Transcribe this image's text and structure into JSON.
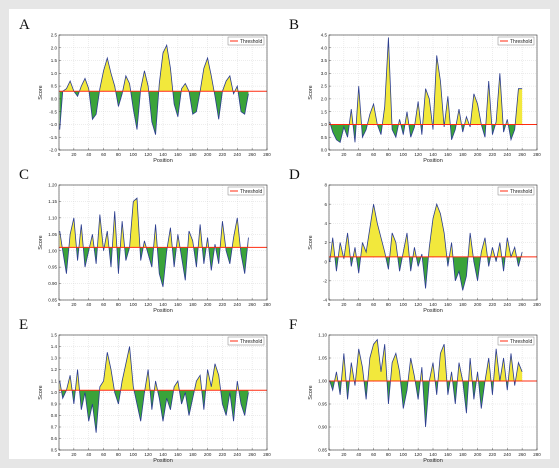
{
  "figure": {
    "panel_letters": [
      "A",
      "B",
      "C",
      "D",
      "E",
      "F"
    ]
  },
  "colors": {
    "above_fill": "#f2e83c",
    "below_fill": "#3aa33a",
    "score_line": "#2b3d8f",
    "threshold_line": "#ff2b10",
    "grid": "#cfcfcf"
  },
  "chart_data": [
    {
      "panel": "A",
      "type": "area",
      "xlabel": "Position",
      "ylabel": "Score",
      "legend": "Threshold",
      "legend_placement": "top-right",
      "grid": true,
      "xlim": [
        0,
        280
      ],
      "ylim": [
        -2.0,
        2.5
      ],
      "xticks": [
        "0",
        "20",
        "40",
        "60",
        "80",
        "100",
        "120",
        "140",
        "160",
        "180",
        "200",
        "220",
        "240",
        "260",
        "280"
      ],
      "yticks": [
        "-2.0",
        "-1.5",
        "-1.0",
        "-0.5",
        "0.0",
        "0.5",
        "1.0",
        "1.5",
        "2.0",
        "2.5"
      ],
      "threshold": 0.3,
      "x": [
        1,
        5,
        10,
        15,
        20,
        25,
        30,
        35,
        40,
        45,
        50,
        55,
        60,
        65,
        70,
        75,
        80,
        85,
        90,
        95,
        100,
        105,
        110,
        115,
        120,
        125,
        130,
        135,
        140,
        145,
        150,
        155,
        160,
        165,
        170,
        175,
        180,
        185,
        190,
        195,
        200,
        205,
        210,
        215,
        220,
        225,
        230,
        235,
        240,
        245,
        250,
        255
      ],
      "values": [
        -1.2,
        0.3,
        0.4,
        0.7,
        0.3,
        0.1,
        0.5,
        0.8,
        0.4,
        -0.8,
        -0.6,
        0.4,
        1.1,
        1.6,
        1.0,
        0.5,
        -0.3,
        0.2,
        0.9,
        0.6,
        -0.4,
        -1.2,
        0.4,
        1.1,
        0.5,
        -0.9,
        -1.4,
        0.6,
        1.8,
        2.1,
        1.2,
        -0.2,
        -0.7,
        0.4,
        0.6,
        0.3,
        -0.6,
        -0.5,
        0.3,
        1.2,
        1.6,
        0.9,
        0.1,
        -0.8,
        0.3,
        0.7,
        0.9,
        0.2,
        0.5,
        -0.5,
        -0.6,
        0.2
      ]
    },
    {
      "panel": "B",
      "type": "area",
      "xlabel": "Position",
      "ylabel": "Score",
      "legend": "Threshold",
      "legend_placement": "top-right",
      "grid": true,
      "xlim": [
        0,
        280
      ],
      "ylim": [
        0.0,
        4.5
      ],
      "xticks": [
        "0",
        "20",
        "40",
        "60",
        "80",
        "100",
        "120",
        "140",
        "160",
        "180",
        "200",
        "220",
        "240",
        "260",
        "280"
      ],
      "yticks": [
        "0.0",
        "0.5",
        "1.0",
        "1.5",
        "2.0",
        "2.5",
        "3.0",
        "3.5",
        "4.0",
        "4.5"
      ],
      "threshold": 1.0,
      "x": [
        1,
        5,
        10,
        15,
        20,
        25,
        30,
        35,
        40,
        45,
        50,
        55,
        60,
        65,
        70,
        75,
        80,
        85,
        90,
        95,
        100,
        105,
        110,
        115,
        120,
        125,
        130,
        135,
        140,
        145,
        150,
        155,
        160,
        165,
        170,
        175,
        180,
        185,
        190,
        195,
        200,
        205,
        210,
        215,
        220,
        225,
        230,
        235,
        240,
        245,
        250,
        255,
        260
      ],
      "values": [
        1.1,
        0.7,
        0.4,
        0.3,
        0.9,
        0.5,
        1.6,
        0.3,
        2.5,
        0.5,
        0.8,
        1.4,
        1.8,
        1.0,
        0.6,
        1.7,
        4.4,
        0.8,
        0.5,
        1.2,
        0.6,
        1.5,
        0.5,
        0.9,
        1.9,
        0.6,
        2.4,
        2.0,
        0.8,
        3.7,
        2.7,
        0.9,
        2.1,
        0.4,
        0.8,
        1.6,
        0.7,
        1.3,
        0.9,
        2.2,
        1.8,
        1.0,
        0.5,
        2.7,
        0.6,
        1.1,
        3.0,
        0.7,
        1.2,
        0.4,
        0.8,
        2.4,
        2.4
      ]
    },
    {
      "panel": "C",
      "type": "area",
      "xlabel": "Position",
      "ylabel": "Score",
      "legend": "Threshold",
      "legend_placement": "top-right",
      "grid": true,
      "xlim": [
        0,
        280
      ],
      "ylim": [
        0.85,
        1.2
      ],
      "xticks": [
        "0",
        "20",
        "40",
        "60",
        "80",
        "100",
        "120",
        "140",
        "160",
        "180",
        "200",
        "220",
        "240",
        "260",
        "280"
      ],
      "yticks": [
        "0.85",
        "0.90",
        "0.95",
        "1.00",
        "1.05",
        "1.10",
        "1.15",
        "1.20"
      ],
      "threshold": 1.01,
      "x": [
        1,
        5,
        10,
        15,
        20,
        25,
        30,
        35,
        40,
        45,
        50,
        55,
        60,
        65,
        70,
        75,
        80,
        85,
        90,
        95,
        100,
        105,
        110,
        115,
        120,
        125,
        130,
        135,
        140,
        145,
        150,
        155,
        160,
        165,
        170,
        175,
        180,
        185,
        190,
        195,
        200,
        205,
        210,
        215,
        220,
        225,
        230,
        235,
        240,
        245,
        250,
        255
      ],
      "values": [
        1.06,
        1.0,
        0.93,
        1.05,
        1.1,
        0.97,
        1.08,
        0.95,
        1.0,
        1.05,
        0.96,
        1.11,
        1.0,
        1.06,
        0.95,
        1.12,
        0.93,
        1.09,
        0.97,
        1.01,
        1.15,
        1.16,
        0.97,
        1.03,
        0.99,
        0.95,
        1.08,
        0.93,
        0.89,
        1.0,
        1.07,
        0.95,
        1.05,
        0.98,
        0.91,
        1.06,
        1.03,
        0.95,
        1.08,
        0.96,
        1.04,
        0.94,
        1.02,
        0.96,
        1.09,
        1.0,
        0.96,
        1.04,
        1.1,
        0.99,
        0.93,
        1.04
      ]
    },
    {
      "panel": "D",
      "type": "area",
      "xlabel": "Position",
      "ylabel": "Score",
      "legend": "Threshold",
      "legend_placement": "top-right",
      "grid": true,
      "xlim": [
        0,
        280
      ],
      "ylim": [
        -4,
        8
      ],
      "xticks": [
        "0",
        "20",
        "40",
        "60",
        "80",
        "100",
        "120",
        "140",
        "160",
        "180",
        "200",
        "220",
        "240",
        "260",
        "280"
      ],
      "yticks": [
        "-4",
        "-2",
        "0",
        "2",
        "4",
        "6",
        "8"
      ],
      "threshold": 0.5,
      "x": [
        1,
        5,
        10,
        15,
        20,
        25,
        30,
        35,
        40,
        45,
        50,
        55,
        60,
        65,
        70,
        75,
        80,
        85,
        90,
        95,
        100,
        105,
        110,
        115,
        120,
        125,
        130,
        135,
        140,
        145,
        150,
        155,
        160,
        165,
        170,
        175,
        180,
        185,
        190,
        195,
        200,
        205,
        210,
        215,
        220,
        225,
        230,
        235,
        240,
        245,
        250,
        255,
        260
      ],
      "values": [
        0.0,
        2.5,
        -1.0,
        2.0,
        0.3,
        3.0,
        -0.5,
        1.5,
        -1.2,
        2.0,
        1.0,
        3.5,
        6.0,
        4.0,
        2.5,
        1.0,
        -0.8,
        3.0,
        2.0,
        -1.0,
        1.0,
        3.0,
        -1.0,
        1.5,
        -0.5,
        0.8,
        -2.8,
        1.5,
        4.5,
        6.0,
        5.0,
        3.0,
        -0.5,
        2.0,
        -2.0,
        -1.0,
        -3.0,
        -1.5,
        3.0,
        0.0,
        -2.0,
        1.0,
        2.5,
        -0.5,
        1.5,
        0.0,
        2.0,
        -1.0,
        2.5,
        0.5,
        1.5,
        -0.5,
        1.0
      ]
    },
    {
      "panel": "E",
      "type": "area",
      "xlabel": "Position",
      "ylabel": "Score",
      "legend": "Threshold",
      "legend_placement": "top-right",
      "grid": true,
      "xlim": [
        0,
        280
      ],
      "ylim": [
        0.5,
        1.5
      ],
      "xticks": [
        "0",
        "20",
        "40",
        "60",
        "80",
        "100",
        "120",
        "140",
        "160",
        "180",
        "200",
        "220",
        "240",
        "260",
        "280"
      ],
      "yticks": [
        "0.5",
        "0.6",
        "0.7",
        "0.8",
        "0.9",
        "1.0",
        "1.1",
        "1.2",
        "1.3",
        "1.4",
        "1.5"
      ],
      "threshold": 1.02,
      "x": [
        1,
        5,
        10,
        15,
        20,
        25,
        30,
        35,
        40,
        45,
        50,
        55,
        60,
        65,
        70,
        75,
        80,
        85,
        90,
        95,
        100,
        105,
        110,
        115,
        120,
        125,
        130,
        135,
        140,
        145,
        150,
        155,
        160,
        165,
        170,
        175,
        180,
        185,
        190,
        195,
        200,
        205,
        210,
        215,
        220,
        225,
        230,
        235,
        240,
        245,
        250,
        255
      ],
      "values": [
        1.1,
        0.95,
        1.02,
        1.15,
        0.9,
        1.2,
        0.85,
        1.0,
        0.75,
        0.9,
        0.65,
        1.05,
        1.1,
        1.35,
        1.2,
        1.0,
        0.9,
        1.1,
        1.25,
        1.4,
        1.05,
        0.9,
        0.75,
        1.0,
        1.2,
        0.85,
        1.1,
        0.95,
        0.75,
        0.95,
        0.85,
        1.05,
        1.1,
        0.9,
        1.0,
        0.8,
        0.95,
        1.1,
        1.15,
        0.85,
        1.2,
        1.05,
        1.25,
        1.15,
        0.9,
        0.8,
        1.0,
        0.75,
        1.1,
        0.9,
        0.8,
        1.0
      ]
    },
    {
      "panel": "F",
      "type": "area",
      "xlabel": "Position",
      "ylabel": "Score",
      "legend": "Threshold",
      "legend_placement": "top-right",
      "grid": true,
      "xlim": [
        0,
        280
      ],
      "ylim": [
        0.85,
        1.1
      ],
      "xticks": [
        "0",
        "20",
        "40",
        "60",
        "80",
        "100",
        "120",
        "140",
        "160",
        "180",
        "200",
        "220",
        "240",
        "260",
        "280"
      ],
      "yticks": [
        "0.85",
        "0.90",
        "0.95",
        "1.00",
        "1.05",
        "1.10"
      ],
      "threshold": 1.0,
      "x": [
        1,
        5,
        10,
        15,
        20,
        25,
        30,
        35,
        40,
        45,
        50,
        55,
        60,
        65,
        70,
        75,
        80,
        85,
        90,
        95,
        100,
        105,
        110,
        115,
        120,
        125,
        130,
        135,
        140,
        145,
        150,
        155,
        160,
        165,
        170,
        175,
        180,
        185,
        190,
        195,
        200,
        205,
        210,
        215,
        220,
        225,
        230,
        235,
        240,
        245,
        250,
        255,
        260
      ],
      "values": [
        1.0,
        0.98,
        1.02,
        0.97,
        1.06,
        0.96,
        1.04,
        0.99,
        1.07,
        1.03,
        0.96,
        1.05,
        1.08,
        1.09,
        1.02,
        1.08,
        0.95,
        1.04,
        1.06,
        1.02,
        0.94,
        0.98,
        1.05,
        1.01,
        0.96,
        1.03,
        0.9,
        1.0,
        1.04,
        0.97,
        1.06,
        1.08,
        0.97,
        1.02,
        0.95,
        1.04,
        1.0,
        0.93,
        1.05,
        0.96,
        1.02,
        0.94,
        1.0,
        1.05,
        0.97,
        1.07,
        1.0,
        1.05,
        0.98,
        1.06,
        0.99,
        1.04,
        1.02
      ]
    }
  ]
}
